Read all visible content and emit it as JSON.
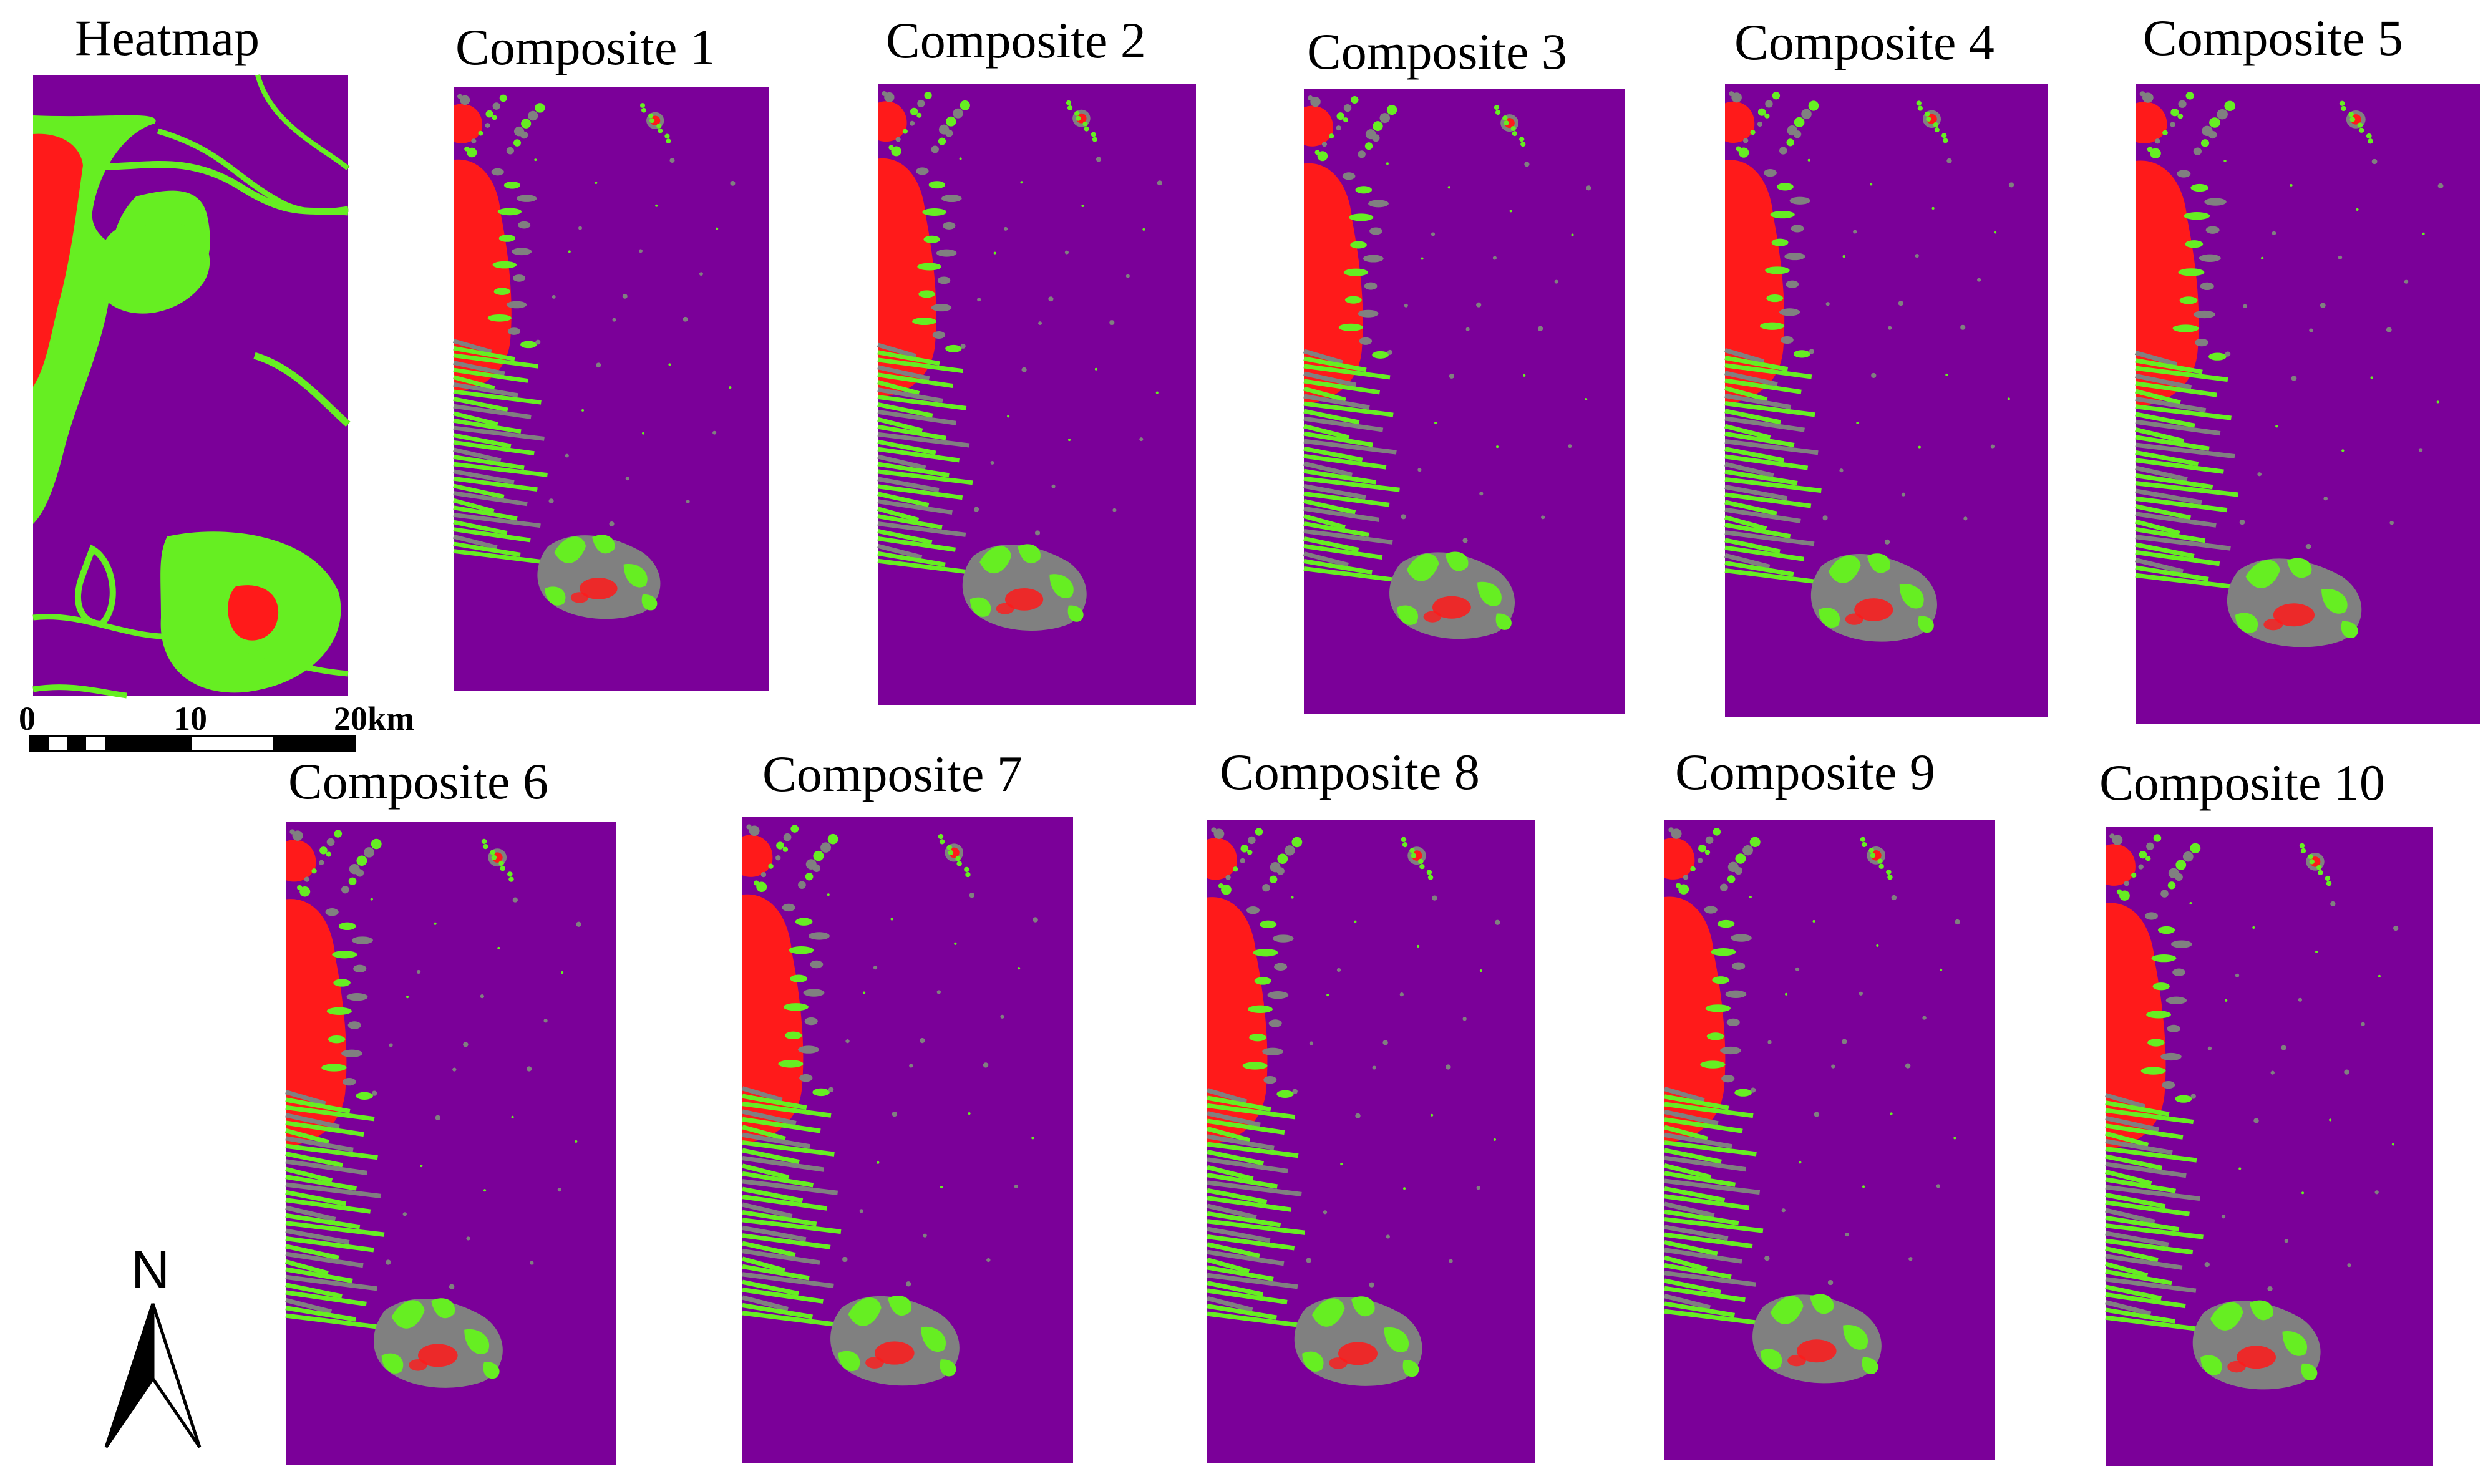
{
  "panels": [
    {
      "title": "Heatmap",
      "kind": "heatmap"
    },
    {
      "title": "Composite 1",
      "kind": "composite"
    },
    {
      "title": "Composite 2",
      "kind": "composite"
    },
    {
      "title": "Composite 3",
      "kind": "composite"
    },
    {
      "title": "Composite 4",
      "kind": "composite"
    },
    {
      "title": "Composite 5",
      "kind": "composite"
    },
    {
      "title": "Composite 6",
      "kind": "composite"
    },
    {
      "title": "Composite 7",
      "kind": "composite"
    },
    {
      "title": "Composite 8",
      "kind": "composite"
    },
    {
      "title": "Composite 9",
      "kind": "composite"
    },
    {
      "title": "Composite 10",
      "kind": "composite"
    }
  ],
  "scale_bar": {
    "tick_labels": [
      "0",
      "10",
      "20km"
    ]
  },
  "north_arrow": {
    "label": "N"
  },
  "colors": {
    "background_class": "#7b0099",
    "red_class": "#ff1a1a",
    "green_class": "#66ee22",
    "gray_class": "#808080"
  }
}
